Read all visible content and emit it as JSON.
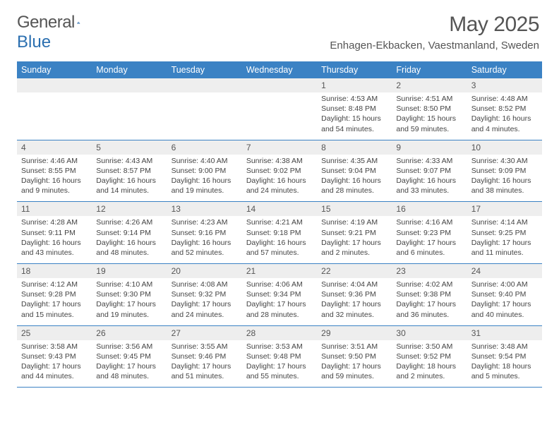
{
  "brand": {
    "text1": "General",
    "text2": "Blue"
  },
  "title": "May 2025",
  "location": "Enhagen-Ekbacken, Vaestmanland, Sweden",
  "colors": {
    "header_bg": "#3b82c4",
    "header_fg": "#ffffff",
    "daynum_bg": "#eeeeee",
    "rule": "#3b82c4",
    "text": "#444444",
    "brand_accent": "#2b6fb0"
  },
  "weekdays": [
    "Sunday",
    "Monday",
    "Tuesday",
    "Wednesday",
    "Thursday",
    "Friday",
    "Saturday"
  ],
  "weeks": [
    [
      {
        "n": "",
        "sr": "",
        "ss": "",
        "dl": ""
      },
      {
        "n": "",
        "sr": "",
        "ss": "",
        "dl": ""
      },
      {
        "n": "",
        "sr": "",
        "ss": "",
        "dl": ""
      },
      {
        "n": "",
        "sr": "",
        "ss": "",
        "dl": ""
      },
      {
        "n": "1",
        "sr": "Sunrise: 4:53 AM",
        "ss": "Sunset: 8:48 PM",
        "dl": "Daylight: 15 hours and 54 minutes."
      },
      {
        "n": "2",
        "sr": "Sunrise: 4:51 AM",
        "ss": "Sunset: 8:50 PM",
        "dl": "Daylight: 15 hours and 59 minutes."
      },
      {
        "n": "3",
        "sr": "Sunrise: 4:48 AM",
        "ss": "Sunset: 8:52 PM",
        "dl": "Daylight: 16 hours and 4 minutes."
      }
    ],
    [
      {
        "n": "4",
        "sr": "Sunrise: 4:46 AM",
        "ss": "Sunset: 8:55 PM",
        "dl": "Daylight: 16 hours and 9 minutes."
      },
      {
        "n": "5",
        "sr": "Sunrise: 4:43 AM",
        "ss": "Sunset: 8:57 PM",
        "dl": "Daylight: 16 hours and 14 minutes."
      },
      {
        "n": "6",
        "sr": "Sunrise: 4:40 AM",
        "ss": "Sunset: 9:00 PM",
        "dl": "Daylight: 16 hours and 19 minutes."
      },
      {
        "n": "7",
        "sr": "Sunrise: 4:38 AM",
        "ss": "Sunset: 9:02 PM",
        "dl": "Daylight: 16 hours and 24 minutes."
      },
      {
        "n": "8",
        "sr": "Sunrise: 4:35 AM",
        "ss": "Sunset: 9:04 PM",
        "dl": "Daylight: 16 hours and 28 minutes."
      },
      {
        "n": "9",
        "sr": "Sunrise: 4:33 AM",
        "ss": "Sunset: 9:07 PM",
        "dl": "Daylight: 16 hours and 33 minutes."
      },
      {
        "n": "10",
        "sr": "Sunrise: 4:30 AM",
        "ss": "Sunset: 9:09 PM",
        "dl": "Daylight: 16 hours and 38 minutes."
      }
    ],
    [
      {
        "n": "11",
        "sr": "Sunrise: 4:28 AM",
        "ss": "Sunset: 9:11 PM",
        "dl": "Daylight: 16 hours and 43 minutes."
      },
      {
        "n": "12",
        "sr": "Sunrise: 4:26 AM",
        "ss": "Sunset: 9:14 PM",
        "dl": "Daylight: 16 hours and 48 minutes."
      },
      {
        "n": "13",
        "sr": "Sunrise: 4:23 AM",
        "ss": "Sunset: 9:16 PM",
        "dl": "Daylight: 16 hours and 52 minutes."
      },
      {
        "n": "14",
        "sr": "Sunrise: 4:21 AM",
        "ss": "Sunset: 9:18 PM",
        "dl": "Daylight: 16 hours and 57 minutes."
      },
      {
        "n": "15",
        "sr": "Sunrise: 4:19 AM",
        "ss": "Sunset: 9:21 PM",
        "dl": "Daylight: 17 hours and 2 minutes."
      },
      {
        "n": "16",
        "sr": "Sunrise: 4:16 AM",
        "ss": "Sunset: 9:23 PM",
        "dl": "Daylight: 17 hours and 6 minutes."
      },
      {
        "n": "17",
        "sr": "Sunrise: 4:14 AM",
        "ss": "Sunset: 9:25 PM",
        "dl": "Daylight: 17 hours and 11 minutes."
      }
    ],
    [
      {
        "n": "18",
        "sr": "Sunrise: 4:12 AM",
        "ss": "Sunset: 9:28 PM",
        "dl": "Daylight: 17 hours and 15 minutes."
      },
      {
        "n": "19",
        "sr": "Sunrise: 4:10 AM",
        "ss": "Sunset: 9:30 PM",
        "dl": "Daylight: 17 hours and 19 minutes."
      },
      {
        "n": "20",
        "sr": "Sunrise: 4:08 AM",
        "ss": "Sunset: 9:32 PM",
        "dl": "Daylight: 17 hours and 24 minutes."
      },
      {
        "n": "21",
        "sr": "Sunrise: 4:06 AM",
        "ss": "Sunset: 9:34 PM",
        "dl": "Daylight: 17 hours and 28 minutes."
      },
      {
        "n": "22",
        "sr": "Sunrise: 4:04 AM",
        "ss": "Sunset: 9:36 PM",
        "dl": "Daylight: 17 hours and 32 minutes."
      },
      {
        "n": "23",
        "sr": "Sunrise: 4:02 AM",
        "ss": "Sunset: 9:38 PM",
        "dl": "Daylight: 17 hours and 36 minutes."
      },
      {
        "n": "24",
        "sr": "Sunrise: 4:00 AM",
        "ss": "Sunset: 9:40 PM",
        "dl": "Daylight: 17 hours and 40 minutes."
      }
    ],
    [
      {
        "n": "25",
        "sr": "Sunrise: 3:58 AM",
        "ss": "Sunset: 9:43 PM",
        "dl": "Daylight: 17 hours and 44 minutes."
      },
      {
        "n": "26",
        "sr": "Sunrise: 3:56 AM",
        "ss": "Sunset: 9:45 PM",
        "dl": "Daylight: 17 hours and 48 minutes."
      },
      {
        "n": "27",
        "sr": "Sunrise: 3:55 AM",
        "ss": "Sunset: 9:46 PM",
        "dl": "Daylight: 17 hours and 51 minutes."
      },
      {
        "n": "28",
        "sr": "Sunrise: 3:53 AM",
        "ss": "Sunset: 9:48 PM",
        "dl": "Daylight: 17 hours and 55 minutes."
      },
      {
        "n": "29",
        "sr": "Sunrise: 3:51 AM",
        "ss": "Sunset: 9:50 PM",
        "dl": "Daylight: 17 hours and 59 minutes."
      },
      {
        "n": "30",
        "sr": "Sunrise: 3:50 AM",
        "ss": "Sunset: 9:52 PM",
        "dl": "Daylight: 18 hours and 2 minutes."
      },
      {
        "n": "31",
        "sr": "Sunrise: 3:48 AM",
        "ss": "Sunset: 9:54 PM",
        "dl": "Daylight: 18 hours and 5 minutes."
      }
    ]
  ]
}
